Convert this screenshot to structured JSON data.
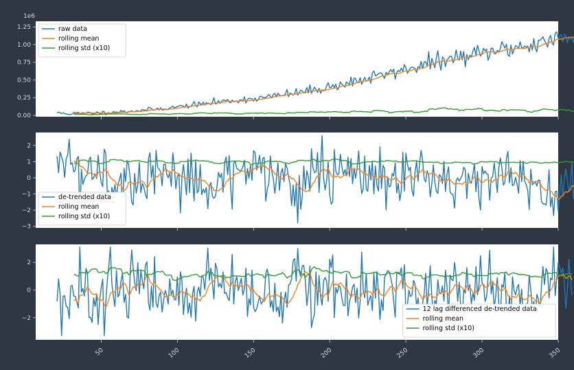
{
  "x_tick_labels": [
    "50",
    "100",
    "150",
    "200",
    "250",
    "300",
    "350"
  ],
  "chart_data": [
    {
      "type": "line",
      "id": "panel1",
      "y_offset_label": "1e6",
      "ylim": [
        -0.02,
        1.33
      ],
      "yticks": [
        0.0,
        0.25,
        0.5,
        0.75,
        1.0,
        1.25
      ],
      "ytick_labels": [
        "0.00",
        "0.25",
        "0.50",
        "0.75",
        "1.00",
        "1.25"
      ],
      "xlim": [
        7,
        350
      ],
      "legend_position": "top-left",
      "series": [
        {
          "name": "raw data",
          "color": "#1f77b4",
          "x_start": 21,
          "values": [
            0.035,
            0.03,
            0.033,
            0.028,
            0.03,
            0.025,
            0.027,
            0.022,
            0.024,
            0.02,
            0.022,
            0.03,
            0.024,
            0.026,
            0.028,
            0.025,
            0.03,
            0.032,
            0.028,
            0.026,
            0.03,
            0.034,
            0.03,
            0.028,
            0.032,
            0.036,
            0.034,
            0.036,
            0.03,
            0.034,
            0.038,
            0.04,
            0.036,
            0.04,
            0.046,
            0.042,
            0.04,
            0.044,
            0.05,
            0.046,
            0.052,
            0.048,
            0.05,
            0.054,
            0.058,
            0.052,
            0.056,
            0.06,
            0.058,
            0.062,
            0.066,
            0.06,
            0.064,
            0.07,
            0.068,
            0.066,
            0.072,
            0.074,
            0.07,
            0.076,
            0.08,
            0.078,
            0.082,
            0.086,
            0.08,
            0.084,
            0.09,
            0.088,
            0.094,
            0.098,
            0.092,
            0.1,
            0.104,
            0.098,
            0.108,
            0.112,
            0.106,
            0.116,
            0.12,
            0.114,
            0.124,
            0.128,
            0.122,
            0.13,
            0.136,
            0.13,
            0.138,
            0.144,
            0.136,
            0.146,
            0.15,
            0.142,
            0.152,
            0.158,
            0.15,
            0.16,
            0.166,
            0.158,
            0.17,
            0.176,
            0.168,
            0.172,
            0.18,
            0.19,
            0.178,
            0.186,
            0.196,
            0.184,
            0.192,
            0.202,
            0.19,
            0.198,
            0.208,
            0.196,
            0.204,
            0.214,
            0.2,
            0.21,
            0.22,
            0.206,
            0.216,
            0.224,
            0.212,
            0.222,
            0.232,
            0.218,
            0.228,
            0.238,
            0.226,
            0.236,
            0.246,
            0.232,
            0.242,
            0.252,
            0.24,
            0.25,
            0.262,
            0.246,
            0.258,
            0.27,
            0.254,
            0.266,
            0.278,
            0.262,
            0.274,
            0.288,
            0.272,
            0.284,
            0.298,
            0.28,
            0.294,
            0.308,
            0.29,
            0.302,
            0.318,
            0.298,
            0.312,
            0.33,
            0.308,
            0.322,
            0.34,
            0.318,
            0.334,
            0.352,
            0.328,
            0.346,
            0.362,
            0.34,
            0.358,
            0.376,
            0.35,
            0.368,
            0.388,
            0.362,
            0.38,
            0.4,
            0.374,
            0.394,
            0.412,
            0.386,
            0.406,
            0.426,
            0.398,
            0.42,
            0.44,
            0.41,
            0.432,
            0.454,
            0.424,
            0.446,
            0.468,
            0.438,
            0.46,
            0.484,
            0.452,
            0.476,
            0.498,
            0.466,
            0.49,
            0.514,
            0.48,
            0.506,
            0.53,
            0.496,
            0.52,
            0.546,
            0.51,
            0.536,
            0.562,
            0.526,
            0.552,
            0.578,
            0.542,
            0.568,
            0.596,
            0.558,
            0.584,
            0.612,
            0.574,
            0.6,
            0.628,
            0.59,
            0.618,
            0.646,
            0.606,
            0.634,
            0.664,
            0.622,
            0.65,
            0.68,
            0.638,
            0.668,
            0.698,
            0.654,
            0.684,
            0.714,
            0.67,
            0.7,
            0.73,
            0.686,
            0.716,
            0.746,
            0.7,
            0.73,
            0.76,
            0.712,
            0.742,
            0.772,
            0.724,
            0.754,
            0.784,
            0.736,
            0.766,
            0.796,
            0.748,
            0.778,
            0.808,
            0.76,
            0.79,
            0.82,
            0.772,
            0.802,
            0.832,
            0.784,
            0.814,
            0.844,
            0.796,
            0.826,
            0.856,
            0.808,
            0.838,
            0.868,
            0.82,
            0.85,
            0.88,
            0.832,
            0.862,
            0.892,
            0.844,
            0.874,
            0.904,
            0.856,
            0.886,
            0.916,
            0.868,
            0.898,
            0.928,
            0.88,
            0.91,
            0.94,
            0.892,
            0.922,
            0.952,
            0.904,
            0.934,
            0.964,
            0.916,
            0.946,
            0.976,
            0.928,
            0.958,
            0.988,
            0.94,
            0.97,
            1.0,
            0.952,
            0.982,
            1.012,
            0.964,
            0.994,
            1.024,
            0.976,
            1.006,
            1.036,
            0.988,
            1.018,
            1.048,
            1.0,
            1.03,
            1.06,
            1.012,
            1.042,
            1.072,
            1.024,
            1.054,
            1.084,
            1.036,
            1.066,
            1.096,
            1.048,
            1.078,
            1.108,
            1.06,
            1.09,
            1.12,
            1.072,
            1.102,
            1.132,
            1.084,
            1.114,
            1.144,
            1.096,
            1.126,
            1.156,
            1.108,
            1.138,
            1.168,
            1.12,
            1.15,
            1.18,
            1.132
          ]
        },
        {
          "name": "rolling mean",
          "color": "#ff7f0e"
        },
        {
          "name": "rolling std (x10)",
          "color": "#2ca02c"
        }
      ]
    },
    {
      "type": "line",
      "id": "panel2",
      "ylim": [
        -3.1,
        2.8
      ],
      "yticks": [
        2,
        1,
        0,
        -1,
        -2,
        -3
      ],
      "ytick_labels": [
        "2",
        "1",
        "0",
        "−1",
        "−2",
        "−3"
      ],
      "xlim": [
        7,
        350
      ],
      "legend_position": "lower-left",
      "series": [
        {
          "name": "de-trended data",
          "color": "#1f77b4"
        },
        {
          "name": "rolling mean",
          "color": "#ff7f0e"
        },
        {
          "name": "rolling std (x10)",
          "color": "#2ca02c"
        }
      ]
    },
    {
      "type": "line",
      "id": "panel3",
      "ylim": [
        -3.6,
        3.3
      ],
      "yticks": [
        2,
        0,
        -2
      ],
      "ytick_labels": [
        "2",
        "0",
        "−2"
      ],
      "xlim": [
        7,
        350
      ],
      "legend_position": "lower-right",
      "series": [
        {
          "name": "12 lag differenced de-trended data",
          "color": "#1f77b4"
        },
        {
          "name": "rolling mean",
          "color": "#ff7f0e"
        },
        {
          "name": "rolling std (x10)",
          "color": "#2ca02c"
        }
      ]
    }
  ]
}
